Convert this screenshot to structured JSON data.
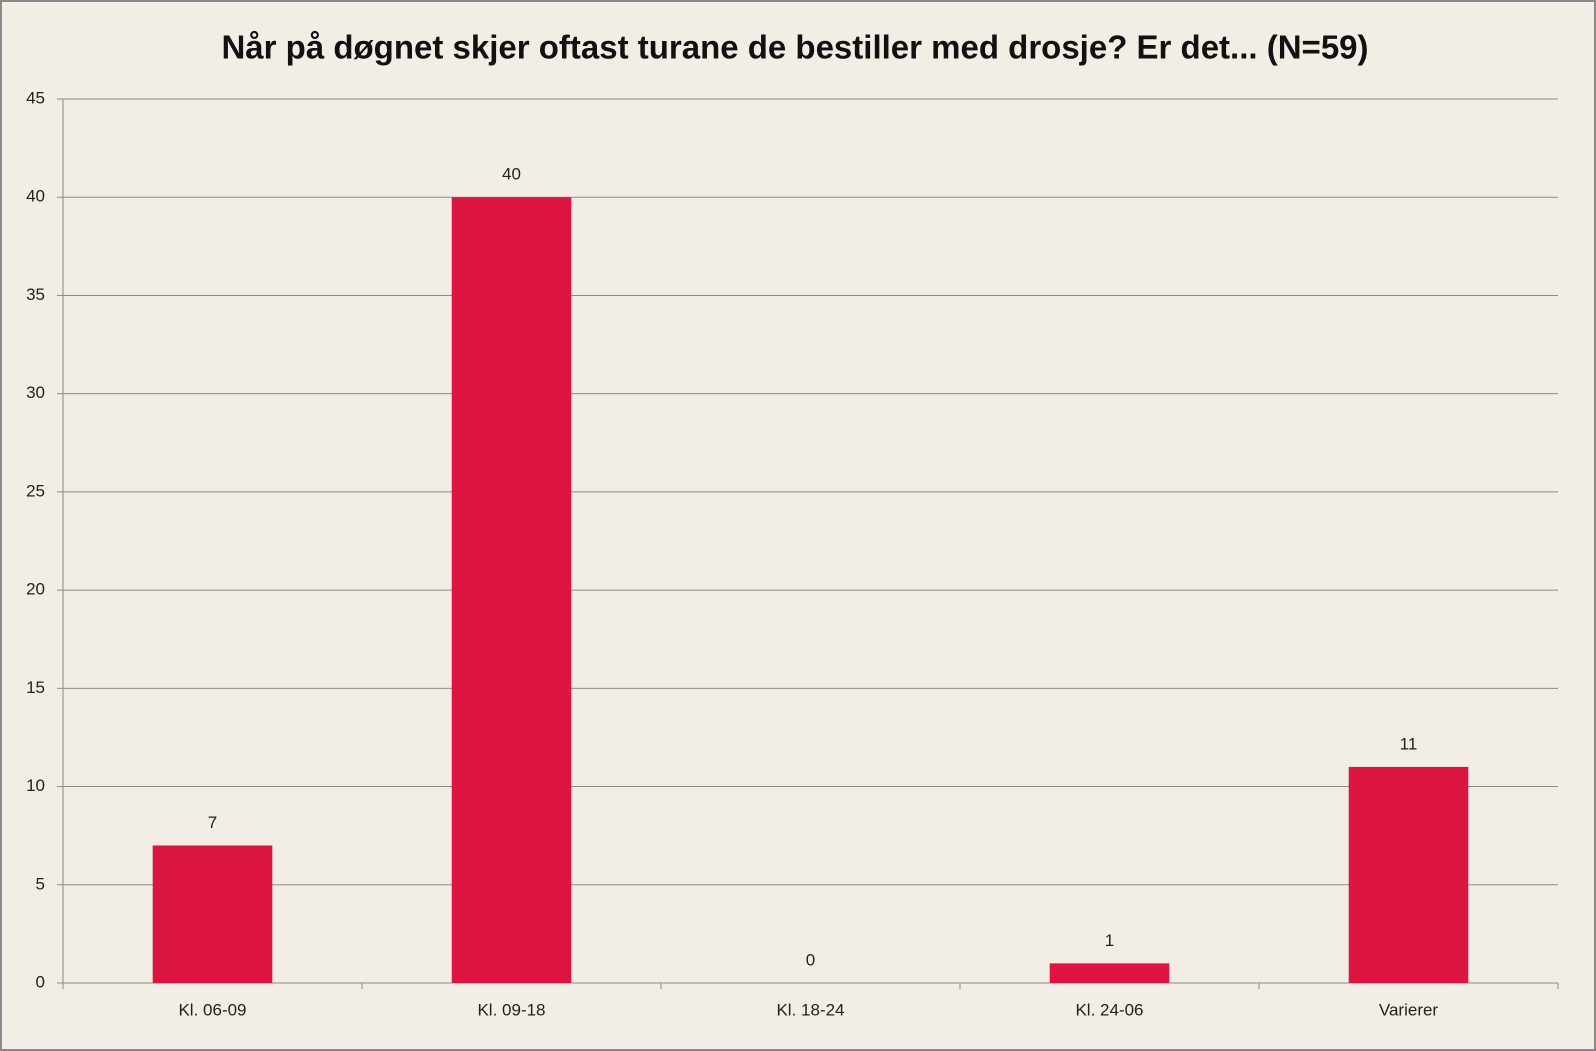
{
  "chart_data": {
    "type": "bar",
    "title": "Når på døgnet skjer oftast turane de bestiller med drosje? Er det... (N=59)",
    "categories": [
      "Kl. 06-09",
      "Kl. 09-18",
      "Kl. 18-24",
      "Kl. 24-06",
      "Varierer"
    ],
    "values": [
      7,
      40,
      0,
      1,
      11
    ],
    "color": "#dc1641",
    "ylim": [
      0,
      45
    ],
    "yticks": [
      0,
      5,
      10,
      15,
      20,
      25,
      30,
      35,
      40,
      45
    ],
    "grid": true
  }
}
